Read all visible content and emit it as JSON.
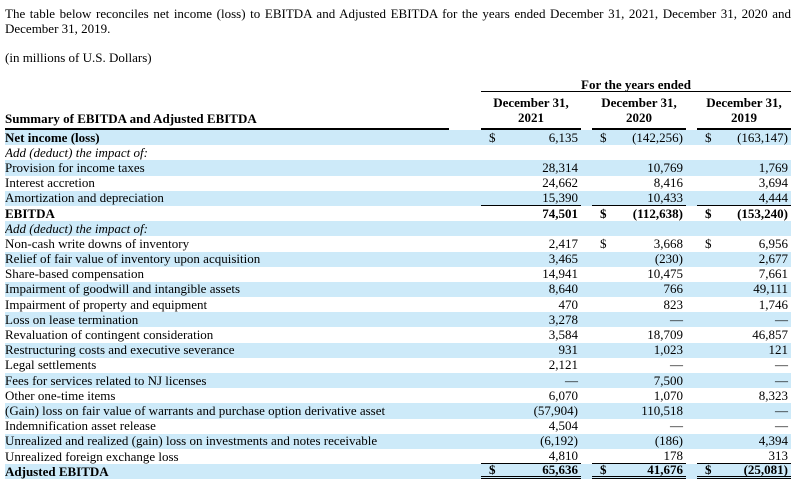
{
  "intro": {
    "paragraph": "The table below reconciles net income (loss) to EBITDA and Adjusted EBITDA for the years ended December 31, 2021, December 31, 2020 and December 31, 2019.",
    "units_note": "(in millions of U.S. Dollars)"
  },
  "table": {
    "group_header": "For the years ended",
    "row_header": "Summary of EBITDA and Adjusted EBITDA",
    "columns": [
      {
        "line1": "December 31,",
        "line2": "2021"
      },
      {
        "line1": "December 31,",
        "line2": "2020"
      },
      {
        "line1": "December 31,",
        "line2": "2019"
      }
    ],
    "colors": {
      "stripe": "#cdeaf9",
      "rule": "#000000"
    },
    "rows": [
      {
        "label": "Net income (loss)",
        "label_bold": true,
        "dollars": [
          true,
          true,
          true
        ],
        "values": [
          "6,135",
          "(142,256)",
          "(163,147)"
        ]
      },
      {
        "label": "Add (deduct) the impact of:",
        "italic": true,
        "values": [
          "",
          "",
          ""
        ]
      },
      {
        "label": "Provision for income taxes",
        "values": [
          "28,314",
          "10,769",
          "1,769"
        ]
      },
      {
        "label": "Interest accretion",
        "values": [
          "24,662",
          "8,416",
          "3,694"
        ]
      },
      {
        "label": "Amortization and depreciation",
        "values": [
          "15,390",
          "10,433",
          "4,444"
        ],
        "rule_below": "single"
      },
      {
        "label": "EBITDA",
        "label_bold": true,
        "values_bold": true,
        "dollars": [
          false,
          true,
          true
        ],
        "values": [
          "74,501",
          "(112,638)",
          "(153,240)"
        ]
      },
      {
        "label": "Add (deduct) the impact of:",
        "italic": true,
        "values": [
          "",
          "",
          ""
        ]
      },
      {
        "label": "Non-cash write downs of inventory",
        "dollars": [
          false,
          true,
          true
        ],
        "values": [
          "2,417",
          "3,668",
          "6,956"
        ]
      },
      {
        "label": "Relief of fair value of inventory upon acquisition",
        "values": [
          "3,465",
          "(230)",
          "2,677"
        ]
      },
      {
        "label": "Share-based compensation",
        "values": [
          "14,941",
          "10,475",
          "7,661"
        ]
      },
      {
        "label": "Impairment of goodwill and intangible assets",
        "values": [
          "8,640",
          "766",
          "49,111"
        ]
      },
      {
        "label": "Impairment of property and equipment",
        "values": [
          "470",
          "823",
          "1,746"
        ]
      },
      {
        "label": "Loss on lease termination",
        "values": [
          "3,278",
          "—",
          "—"
        ]
      },
      {
        "label": "Revaluation of contingent consideration",
        "values": [
          "3,584",
          "18,709",
          "46,857"
        ]
      },
      {
        "label": "Restructuring costs and executive severance",
        "values": [
          "931",
          "1,023",
          "121"
        ]
      },
      {
        "label": "Legal settlements",
        "values": [
          "2,121",
          "—",
          "—"
        ]
      },
      {
        "label": "Fees for services related to NJ licenses",
        "values": [
          "—",
          "7,500",
          "—"
        ]
      },
      {
        "label": "Other one-time items",
        "values": [
          "6,070",
          "1,070",
          "8,323"
        ]
      },
      {
        "label": "(Gain) loss on fair value of warrants and purchase option derivative asset",
        "values": [
          "(57,904)",
          "110,518",
          "—"
        ]
      },
      {
        "label": "Indemnification asset release",
        "values": [
          "4,504",
          "—",
          "—"
        ]
      },
      {
        "label": "Unrealized and realized (gain) loss on investments and notes receivable",
        "values": [
          "(6,192)",
          "(186)",
          "4,394"
        ]
      },
      {
        "label": "Unrealized foreign exchange loss",
        "values": [
          "4,810",
          "178",
          "313"
        ],
        "rule_below": "single"
      },
      {
        "label": "Adjusted EBITDA",
        "label_bold": true,
        "values_bold": true,
        "dollars": [
          true,
          true,
          true
        ],
        "values": [
          "65,636",
          "41,676",
          "(25,081)"
        ],
        "rule_below": "double"
      }
    ]
  }
}
